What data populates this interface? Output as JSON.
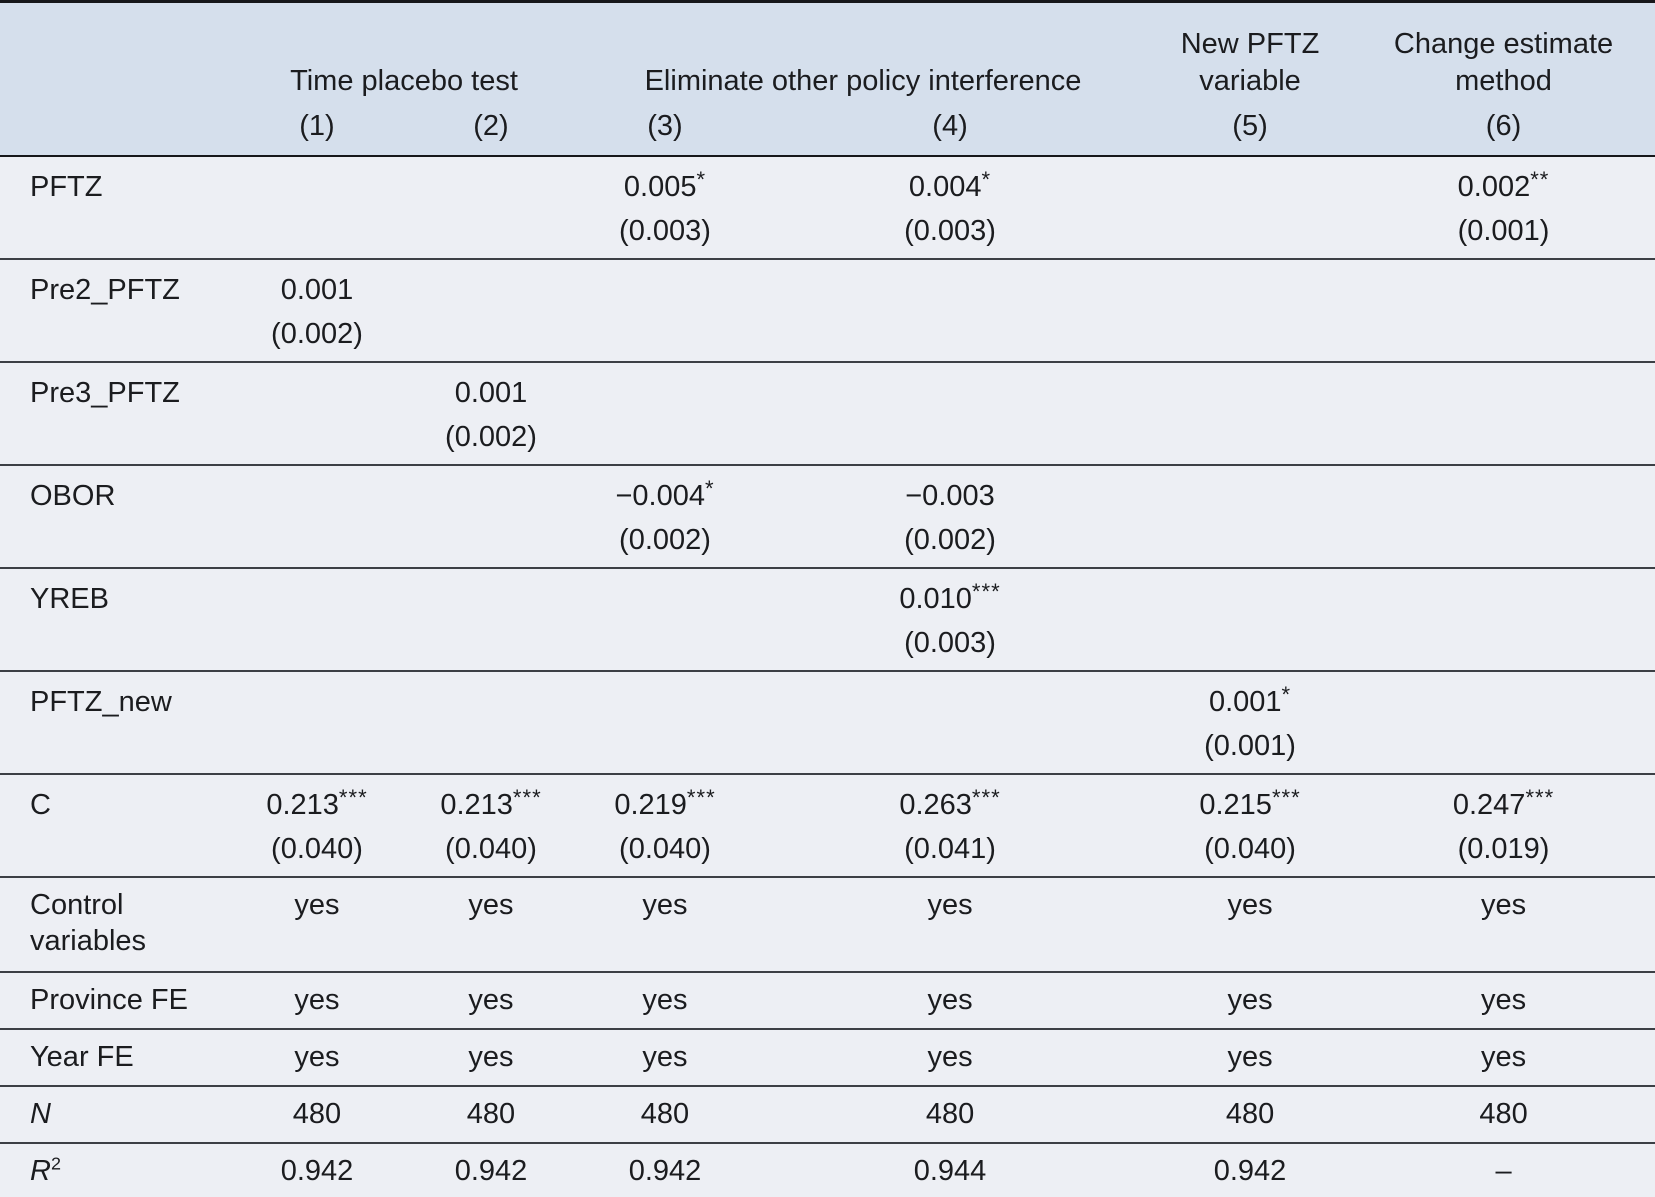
{
  "colors": {
    "header_bg": "#d5dfec",
    "body_bg": "#edeff4",
    "rule": "#3c3f45",
    "heavy_rule": "#16171a",
    "text": "#1b1c1f"
  },
  "table": {
    "header": {
      "groups": [
        {
          "label": "Time placebo test",
          "span": 2
        },
        {
          "label": "Eliminate other policy interference",
          "span": 2
        },
        {
          "label": "New PFTZ variable",
          "span": 1
        },
        {
          "label": "Change estimate method",
          "span": 1
        }
      ],
      "numbers": [
        "(1)",
        "(2)",
        "(3)",
        "(4)",
        "(5)",
        "(6)"
      ]
    },
    "coef_rows": [
      {
        "label": "PFTZ",
        "cells": [
          [
            "",
            ""
          ],
          [
            "",
            ""
          ],
          [
            "0.005*",
            "(0.003)"
          ],
          [
            "0.004*",
            "(0.003)"
          ],
          [
            "",
            ""
          ],
          [
            "0.002**",
            "(0.001)"
          ]
        ]
      },
      {
        "label": "Pre2_PFTZ",
        "cells": [
          [
            "0.001",
            "(0.002)"
          ],
          [
            "",
            ""
          ],
          [
            "",
            ""
          ],
          [
            "",
            ""
          ],
          [
            "",
            ""
          ],
          [
            "",
            ""
          ]
        ]
      },
      {
        "label": "Pre3_PFTZ",
        "cells": [
          [
            "",
            ""
          ],
          [
            "0.001",
            "(0.002)"
          ],
          [
            "",
            ""
          ],
          [
            "",
            ""
          ],
          [
            "",
            ""
          ],
          [
            "",
            ""
          ]
        ]
      },
      {
        "label": "OBOR",
        "cells": [
          [
            "",
            ""
          ],
          [
            "",
            ""
          ],
          [
            "−0.004*",
            "(0.002)"
          ],
          [
            "−0.003",
            "(0.002)"
          ],
          [
            "",
            ""
          ],
          [
            "",
            ""
          ]
        ]
      },
      {
        "label": "YREB",
        "cells": [
          [
            "",
            ""
          ],
          [
            "",
            ""
          ],
          [
            "",
            ""
          ],
          [
            "0.010***",
            "(0.003)"
          ],
          [
            "",
            ""
          ],
          [
            "",
            ""
          ]
        ]
      },
      {
        "label": "PFTZ_new",
        "cells": [
          [
            "",
            ""
          ],
          [
            "",
            ""
          ],
          [
            "",
            ""
          ],
          [
            "",
            ""
          ],
          [
            "0.001*",
            "(0.001)"
          ],
          [
            "",
            ""
          ]
        ]
      },
      {
        "label": "C",
        "cells": [
          [
            "0.213***",
            "(0.040)"
          ],
          [
            "0.213***",
            "(0.040)"
          ],
          [
            "0.219***",
            "(0.040)"
          ],
          [
            "0.263***",
            "(0.041)"
          ],
          [
            "0.215***",
            "(0.040)"
          ],
          [
            "0.247***",
            "(0.019)"
          ]
        ]
      }
    ],
    "info_rows": [
      {
        "label": "Control variables",
        "tall": true,
        "values": [
          "yes",
          "yes",
          "yes",
          "yes",
          "yes",
          "yes"
        ]
      },
      {
        "label": "Province FE",
        "values": [
          "yes",
          "yes",
          "yes",
          "yes",
          "yes",
          "yes"
        ]
      },
      {
        "label": "Year FE",
        "values": [
          "yes",
          "yes",
          "yes",
          "yes",
          "yes",
          "yes"
        ]
      },
      {
        "label": "N",
        "italic": true,
        "values": [
          "480",
          "480",
          "480",
          "480",
          "480",
          "480"
        ]
      },
      {
        "label": "R",
        "sup": "2",
        "italic": true,
        "values": [
          "0.942",
          "0.942",
          "0.942",
          "0.944",
          "0.942",
          "–"
        ]
      }
    ]
  }
}
